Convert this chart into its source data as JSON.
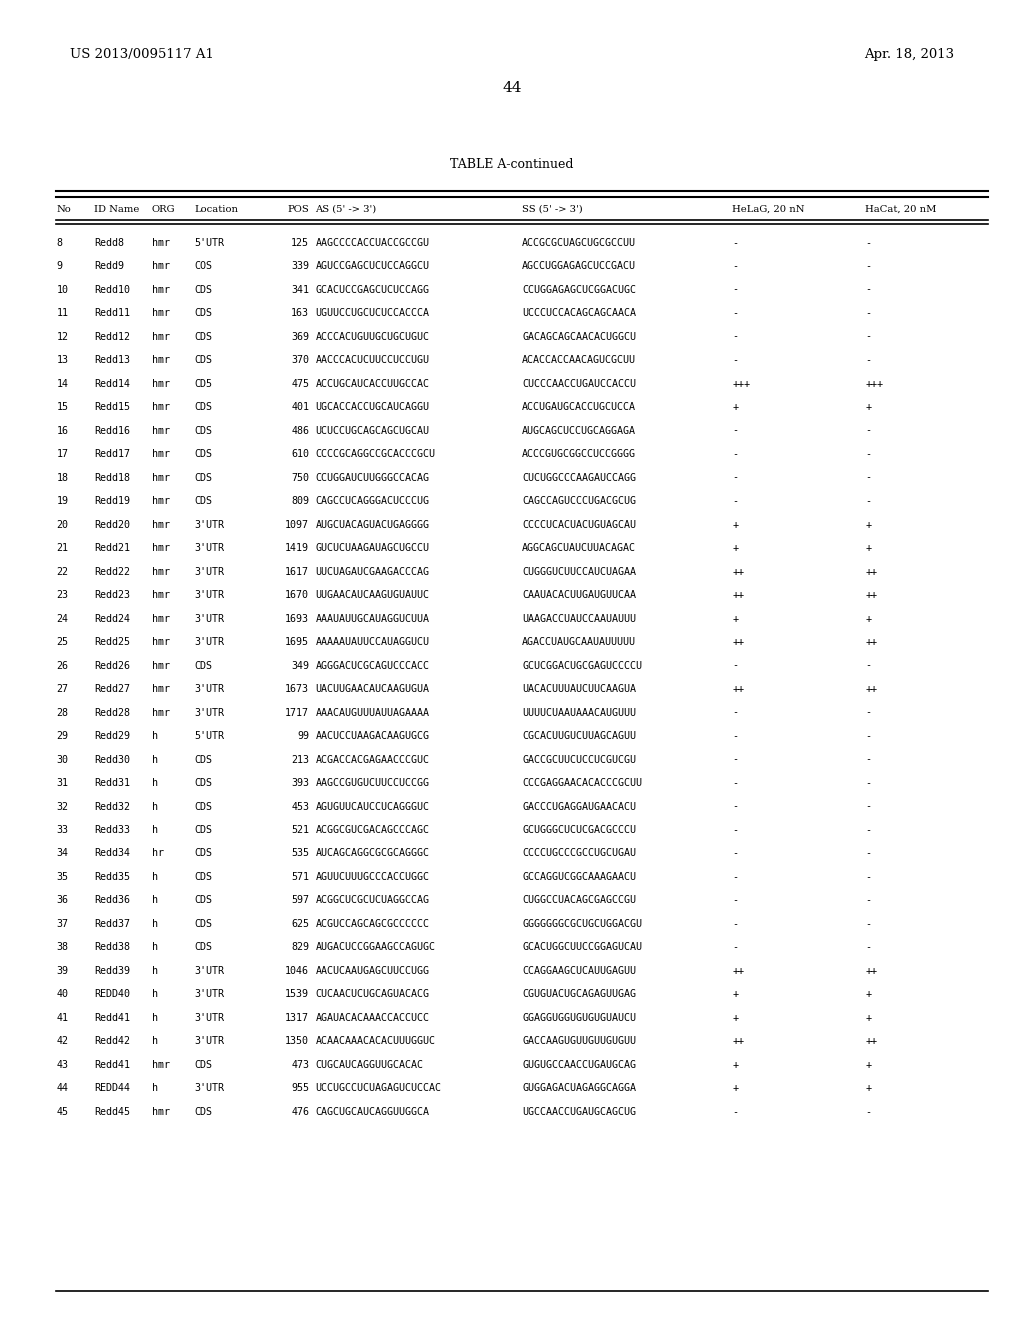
{
  "header_left": "US 2013/0095117 A1",
  "header_right": "Apr. 18, 2013",
  "page_number": "44",
  "table_title": "TABLE A-continued",
  "col_headers": [
    "No",
    "ID Name",
    "ORG",
    "Location",
    "POS",
    "AS (5' -> 3')",
    "SS (5' -> 3')",
    "HeLaG, 20 nN",
    "HaCat, 20 nM"
  ],
  "rows": [
    [
      "8",
      "Redd8",
      "hmr",
      "5'UTR",
      "125",
      "AAGCCCCACCUACCGCCGU",
      "ACCGCGCUAGCUGCGCCUU",
      "-",
      "-"
    ],
    [
      "9",
      "Redd9",
      "hmr",
      "COS",
      "339",
      "AGUCCGAGCUCUCCAGGCU",
      "AGCCUGGAGAGCUCCGACU",
      "-",
      "-"
    ],
    [
      "10",
      "Redd10",
      "hmr",
      "CDS",
      "341",
      "GCACUCCGAGCUCUCCAGG",
      "CCUGGAGAGCUCGGACUGC",
      "-",
      "-"
    ],
    [
      "11",
      "Redd11",
      "hmr",
      "CDS",
      "163",
      "UGUUCCUGCUCUCCACCCA",
      "UCCCUCCACAGCAGCAACA",
      "-",
      "-"
    ],
    [
      "12",
      "Redd12",
      "hmr",
      "CDS",
      "369",
      "ACCCACUGUUGCUGCUGUC",
      "GACAGCAGCAACACUGGCU",
      "-",
      "-"
    ],
    [
      "13",
      "Redd13",
      "hmr",
      "CDS",
      "370",
      "AACCCACUCUUCCUCCUGU",
      "ACACCACCAACAGUCGCUU",
      "-",
      "-"
    ],
    [
      "14",
      "Redd14",
      "hmr",
      "CD5",
      "475",
      "ACCUGCAUCACCUUGCCAC",
      "CUCCCAACCUGAUCCACCU",
      "+++",
      "+++"
    ],
    [
      "15",
      "Redd15",
      "hmr",
      "CDS",
      "401",
      "UGCACCACCUGCAUCAGGU",
      "ACCUGAUGCACCUGCUCCA",
      "+",
      "+"
    ],
    [
      "16",
      "Redd16",
      "hmr",
      "CDS",
      "486",
      "UCUCCUGCAGCAGCUGCAU",
      "AUGCAGCUCCUGCAGGAGA",
      "-",
      "-"
    ],
    [
      "17",
      "Redd17",
      "hmr",
      "CDS",
      "610",
      "CCCCGCAGGCCGCACCCGCU",
      "ACCCGUGCGGCCUCCGGGG",
      "-",
      "-"
    ],
    [
      "18",
      "Redd18",
      "hmr",
      "CDS",
      "750",
      "CCUGGAUCUUGGGCCACAG",
      "CUCUGGCCCAAGAUCCAGG",
      "-",
      "-"
    ],
    [
      "19",
      "Redd19",
      "hmr",
      "CDS",
      "809",
      "CAGCCUCAGGGACUCCCUG",
      "CAGCCAGUCCCUGACGCUG",
      "-",
      "-"
    ],
    [
      "20",
      "Redd20",
      "hmr",
      "3'UTR",
      "1097",
      "AUGCUACAGUACUGAGGGG",
      "CCCCUCACUACUGUAGCAU",
      "+",
      "+"
    ],
    [
      "21",
      "Redd21",
      "hmr",
      "3'UTR",
      "1419",
      "GUCUCUAAGAUAGCUGCCU",
      "AGGCAGCUAUCUUACAGAC",
      "+",
      "+"
    ],
    [
      "22",
      "Redd22",
      "hmr",
      "3'UTR",
      "1617",
      "UUCUAGAUCGAAGACCCAG",
      "CUGGGUCUUCCAUCUAGAA",
      "++",
      "++"
    ],
    [
      "23",
      "Redd23",
      "hmr",
      "3'UTR",
      "1670",
      "UUGAACAUCAAGUGUAUUC",
      "CAAUACACUUGAUGUUCAA",
      "++",
      "++"
    ],
    [
      "24",
      "Redd24",
      "hmr",
      "3'UTR",
      "1693",
      "AAAUAUUGCAUAGGUCUUA",
      "UAAGACCUAUCCAAUAUUU",
      "+",
      "+"
    ],
    [
      "25",
      "Redd25",
      "hmr",
      "3'UTR",
      "1695",
      "AAAAAUAUUCCAUAGGUCU",
      "AGACCUAUGCAAUAUUUUU",
      "++",
      "++"
    ],
    [
      "26",
      "Redd26",
      "hmr",
      "CDS",
      "349",
      "AGGGACUCGCAGUCCCACC",
      "GCUCGGACUGCGAGUCCCCU",
      "-",
      "-"
    ],
    [
      "27",
      "Redd27",
      "hmr",
      "3'UTR",
      "1673",
      "UACUUGAACAUCAAGUGUA",
      "UACACUUUAUCUUCAAGUA",
      "++",
      "++"
    ],
    [
      "28",
      "Redd28",
      "hmr",
      "3'UTR",
      "1717",
      "AAACAUGUUUAUUAGAAAA",
      "UUUUCUAAUAAACAUGUUU",
      "-",
      "-"
    ],
    [
      "29",
      "Redd29",
      "h",
      "5'UTR",
      "99",
      "AACUCCUAAGACAAGUGCG",
      "CGCACUUGUCUUAGCAGUU",
      "-",
      "-"
    ],
    [
      "30",
      "Redd30",
      "h",
      "CDS",
      "213",
      "ACGACCACGAGAACCCGUC",
      "GACCGCUUCUCCUCGUCGU",
      "-",
      "-"
    ],
    [
      "31",
      "Redd31",
      "h",
      "CDS",
      "393",
      "AAGCCGUGUCUUCCUCCGG",
      "CCCGAGGAACACACCCGCUU",
      "-",
      "-"
    ],
    [
      "32",
      "Redd32",
      "h",
      "CDS",
      "453",
      "AGUGUUCAUCCUCAGGGUC",
      "GACCCUGAGGAUGAACACU",
      "-",
      "-"
    ],
    [
      "33",
      "Redd33",
      "h",
      "CDS",
      "521",
      "ACGGCGUCGACAGCCCAGC",
      "GCUGGGCUCUCGACGCCCU",
      "-",
      "-"
    ],
    [
      "34",
      "Redd34",
      "hr",
      "CDS",
      "535",
      "AUCAGCAGGCGCGCAGGGC",
      "CCCCUGCCCGCCUGCUGAU",
      "-",
      "-"
    ],
    [
      "35",
      "Redd35",
      "h",
      "CDS",
      "571",
      "AGUUCUUUGCCCACCUGGC",
      "GCCAGGUCGGCAAAGAACU",
      "-",
      "-"
    ],
    [
      "36",
      "Redd36",
      "h",
      "CDS",
      "597",
      "ACGGCUCGCUCUAGGCCAG",
      "CUGGCCUACAGCGAGCCGU",
      "-",
      "-"
    ],
    [
      "37",
      "Redd37",
      "h",
      "CDS",
      "625",
      "ACGUCCAGCAGCGCCCCCC",
      "GGGGGGGCGCUGCUGGACGU",
      "-",
      "-"
    ],
    [
      "38",
      "Redd38",
      "h",
      "CDS",
      "829",
      "AUGACUCCGGAAGCCAGUGC",
      "GCACUGGCUUCCGGAGUCAU",
      "-",
      "-"
    ],
    [
      "39",
      "Redd39",
      "h",
      "3'UTR",
      "1046",
      "AACUCAAUGAGCUUCCUGG",
      "CCAGGAAGCUCAUUGAGUU",
      "++",
      "++"
    ],
    [
      "40",
      "REDD40",
      "h",
      "3'UTR",
      "1539",
      "CUCAACUCUGCAGUACACG",
      "CGUGUACUGCAGAGUUGAG",
      "+",
      "+"
    ],
    [
      "41",
      "Redd41",
      "h",
      "3'UTR",
      "1317",
      "AGAUACACAAACCACCUCC",
      "GGAGGUGGUGUGUGUAUCU",
      "+",
      "+"
    ],
    [
      "42",
      "Redd42",
      "h",
      "3'UTR",
      "1350",
      "ACAACAAACACACUUUGGUC",
      "GACCAAGUGUUGUUGUGUU",
      "++",
      "++"
    ],
    [
      "43",
      "Redd41",
      "hmr",
      "CDS",
      "473",
      "CUGCAUCAGGUUGCACAC",
      "GUGUGCCAACCUGAUGCAG",
      "+",
      "+"
    ],
    [
      "44",
      "REDD44",
      "h",
      "3'UTR",
      "955",
      "UCCUGCCUCUAGAGUCUCCAC",
      "GUGGAGACUAGAGGCAGGA",
      "+",
      "+"
    ],
    [
      "45",
      "Redd45",
      "hmr",
      "CDS",
      "476",
      "CAGCUGCAUCAGGUUGGCA",
      "UGCCAACCUGAUGCAGCUG",
      "-",
      "-"
    ]
  ]
}
